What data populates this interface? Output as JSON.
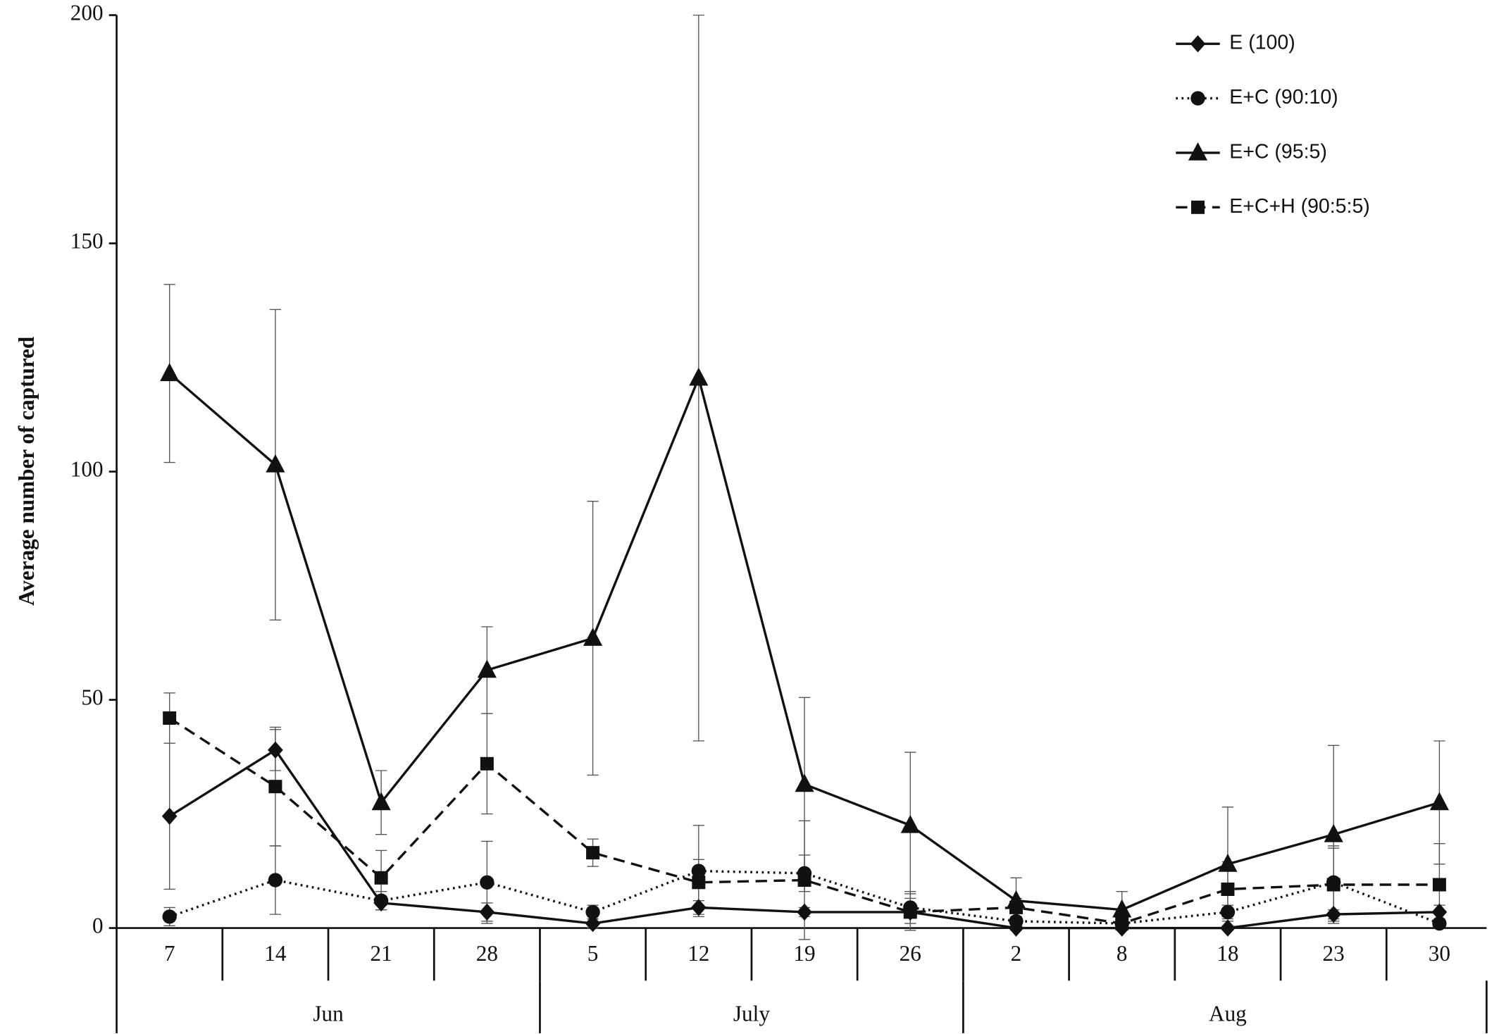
{
  "chart_data": {
    "type": "line",
    "ylabel": "Average number of captured",
    "categories": [
      "7",
      "14",
      "21",
      "28",
      "5",
      "12",
      "19",
      "26",
      "2",
      "8",
      "18",
      "23",
      "30"
    ],
    "groups": [
      {
        "label": "Jun",
        "span": 4
      },
      {
        "label": "July",
        "span": 4
      },
      {
        "label": "Aug",
        "span": 5
      }
    ],
    "ylim": [
      0,
      200
    ],
    "yticks": [
      0,
      50,
      100,
      150,
      200
    ],
    "legend": "top-right",
    "series": [
      {
        "name": "E (100)",
        "color": "#111111",
        "marker": "diamond",
        "dash": "solid",
        "values": [
          24.5,
          39,
          5.5,
          3.5,
          1,
          4.5,
          3.5,
          3.5,
          0,
          0,
          0,
          3,
          3.5
        ],
        "errors": [
          16,
          4.5,
          1.5,
          2,
          1,
          1.5,
          1,
          1,
          0.5,
          0.5,
          0.5,
          1,
          1.5
        ]
      },
      {
        "name": "E+C (90:10)",
        "color": "#111111",
        "marker": "circle",
        "dash": "dotted",
        "values": [
          2.5,
          10.5,
          6,
          10,
          3.5,
          12.5,
          12,
          4.5,
          1.5,
          1,
          3.5,
          10,
          1
        ],
        "errors": [
          2,
          7.5,
          2,
          9,
          1.5,
          10,
          4,
          3.5,
          1,
          0.5,
          1.5,
          8,
          1
        ]
      },
      {
        "name": "E+C (95:5)",
        "color": "#111111",
        "marker": "triangle",
        "dash": "solid",
        "values": [
          121.5,
          101.5,
          27.5,
          56.5,
          63.5,
          120.5,
          31.5,
          22.5,
          6,
          4,
          14,
          20.5,
          27.5
        ],
        "errors": [
          19.5,
          34,
          7,
          9.5,
          30,
          79.5,
          19,
          16,
          5,
          4,
          12.5,
          19.5,
          13.5
        ]
      },
      {
        "name": "E+C+H (90:5:5)",
        "color": "#111111",
        "marker": "square",
        "dash": "dashed",
        "values": [
          46,
          31,
          11,
          36,
          16.5,
          10,
          10.5,
          3.5,
          4.5,
          1,
          8.5,
          9.5,
          9.5
        ],
        "errors": [
          5.5,
          13,
          6,
          11,
          3,
          5,
          13,
          4,
          2,
          1,
          6,
          8,
          9
        ]
      }
    ]
  }
}
